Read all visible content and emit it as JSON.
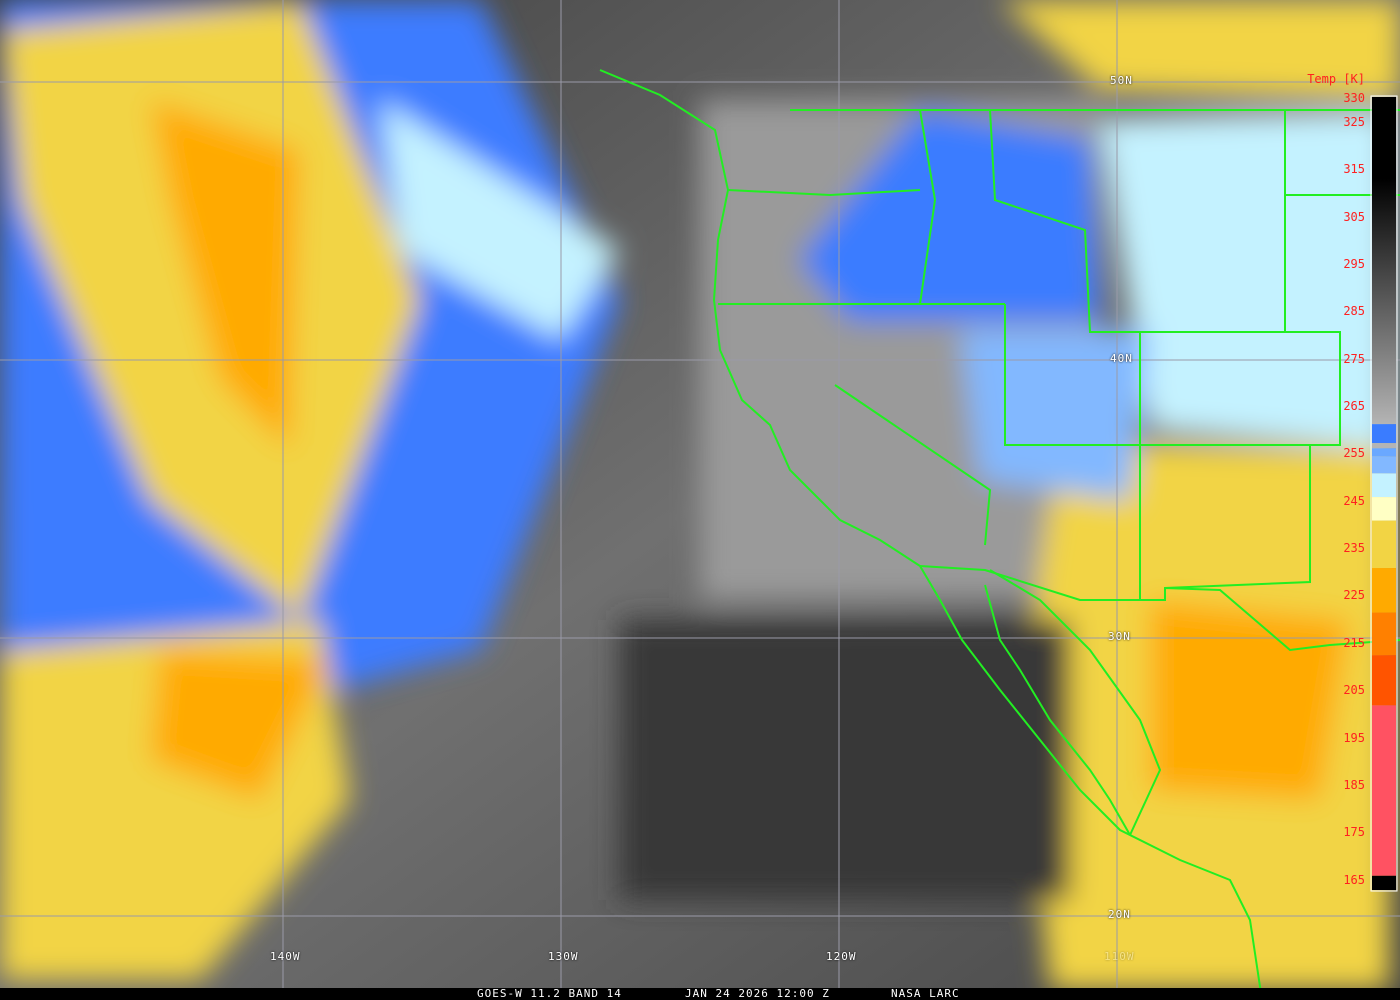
{
  "caption": {
    "satellite": "GOES-W 11.2 BAND 14",
    "datetime": "JAN 24 2026 12:00 Z",
    "source": "NASA LARC"
  },
  "lat_labels": [
    "50N",
    "40N",
    "30N",
    "20N"
  ],
  "lon_labels": [
    "140W",
    "130W",
    "120W",
    "110W"
  ],
  "colorbar": {
    "title": "Temp [K]",
    "range": [
      163,
      330.5
    ],
    "ticks": [
      "330",
      "325",
      "315",
      "305",
      "295",
      "285",
      "275",
      "265",
      "255",
      "245",
      "235",
      "225",
      "215",
      "205",
      "195",
      "185",
      "175",
      "165"
    ],
    "segments": [
      {
        "from": 330.5,
        "to": 261.4,
        "color_top": "#000000",
        "color_bottom": "#b4b4b4"
      },
      {
        "from": 261.4,
        "to": 257.4,
        "color": "#3a7cff"
      },
      {
        "from": 257.4,
        "to": 256.3,
        "color": "#b4b4b4"
      },
      {
        "from": 256.3,
        "to": 254.6,
        "color": "#6aa8ff"
      },
      {
        "from": 254.6,
        "to": 251.0,
        "color": "#82b8ff"
      },
      {
        "from": 251.0,
        "to": 246.0,
        "color": "#c4f2ff"
      },
      {
        "from": 246.0,
        "to": 241.0,
        "color": "#ffffc4"
      },
      {
        "from": 241.0,
        "to": 231.0,
        "color": "#f2d444"
      },
      {
        "from": 231.0,
        "to": 221.6,
        "color": "#ffaa00"
      },
      {
        "from": 221.6,
        "to": 212.6,
        "color": "#ff8000"
      },
      {
        "from": 212.6,
        "to": 202.0,
        "color": "#ff5400"
      },
      {
        "from": 202.0,
        "to": 166.0,
        "color": "#ff5262"
      },
      {
        "from": 166.0,
        "to": 163.0,
        "color": "#000000"
      }
    ]
  },
  "colors": {
    "boundaries": "#22ee22",
    "grid": "#9a9aa8",
    "labels": "#ffffff",
    "colorbar_text": "#ff2020"
  }
}
